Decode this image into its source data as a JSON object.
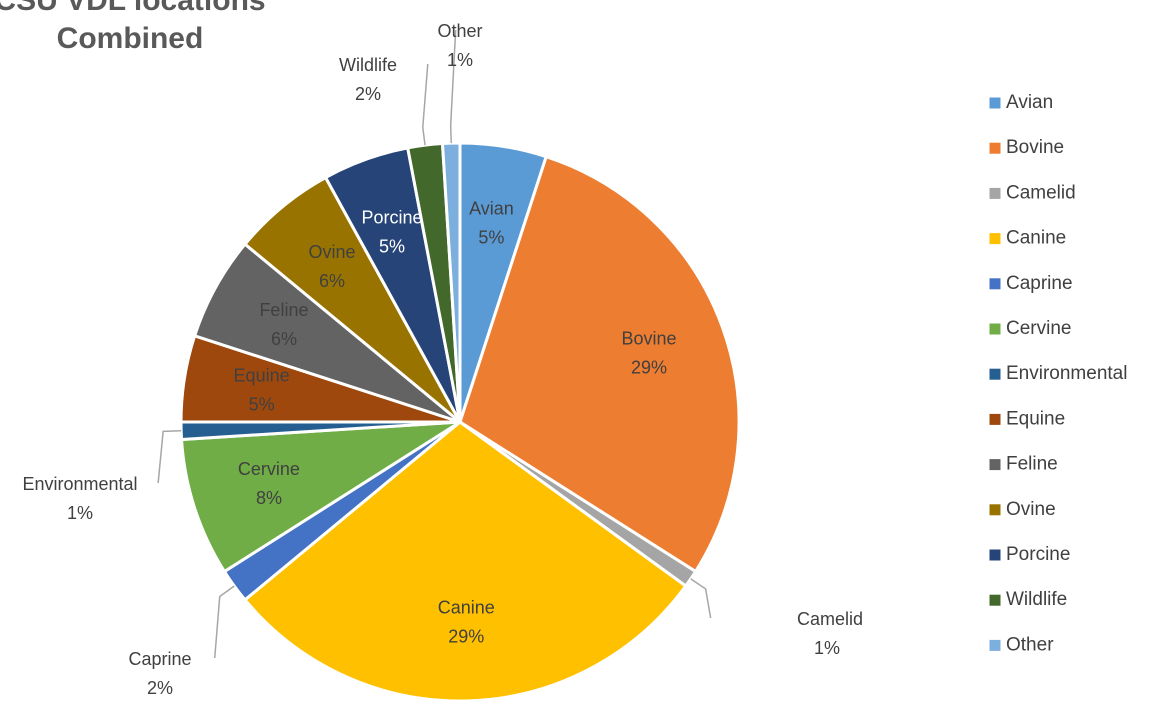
{
  "chart_data": {
    "type": "pie",
    "title": "CSU VDL locations Combined",
    "categories": [
      "Avian",
      "Bovine",
      "Camelid",
      "Canine",
      "Caprine",
      "Cervine",
      "Environmental",
      "Equine",
      "Feline",
      "Ovine",
      "Porcine",
      "Wildlife",
      "Other"
    ],
    "values": [
      5,
      29,
      1,
      29,
      2,
      8,
      1,
      5,
      6,
      6,
      5,
      2,
      1
    ],
    "value_labels": [
      "5%",
      "29%",
      "1%",
      "29%",
      "2%",
      "8%",
      "1%",
      "5%",
      "6%",
      "6%",
      "5%",
      "2%",
      "1%"
    ],
    "colors": [
      "#5b9bd5",
      "#ed7d31",
      "#a5a5a5",
      "#ffc000",
      "#4472c4",
      "#70ad47",
      "#255e91",
      "#9e480e",
      "#636363",
      "#997300",
      "#264478",
      "#43682b",
      "#7cafdd"
    ],
    "legend": "right"
  }
}
